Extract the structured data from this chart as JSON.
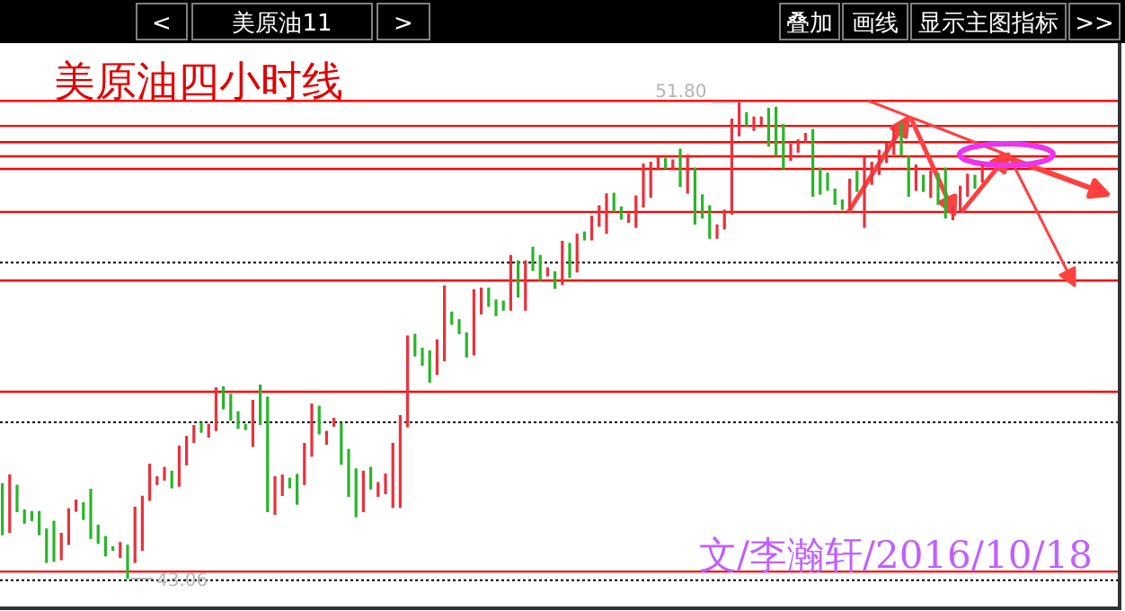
{
  "chart_data": {
    "type": "candlestick",
    "title": "美原油四小时线",
    "subtitle": "文/李瀚轩/2016/10/18",
    "annotations": [
      "<",
      "美原油11",
      ">",
      "叠加",
      "画线",
      "显示主图指标",
      ">>",
      {
        "text": "51.80",
        "y": 51.8
      },
      {
        "text": "43.06",
        "y": 43.06
      }
    ],
    "categories": [
      null,
      null,
      null,
      null,
      null,
      null,
      null,
      null,
      null,
      null,
      null,
      null,
      null,
      null,
      null,
      null,
      null,
      null,
      null,
      null,
      null,
      null,
      null,
      null,
      null,
      null,
      null,
      null,
      null,
      null,
      null,
      null,
      null,
      null,
      null,
      null,
      null,
      null,
      null,
      null,
      null,
      null,
      null,
      null,
      null,
      null,
      null,
      null,
      null,
      null,
      null,
      null,
      null,
      null,
      null,
      null,
      null,
      null,
      null,
      null,
      null,
      null,
      null,
      null,
      null,
      null,
      null,
      null,
      null,
      null,
      null,
      null,
      null,
      null,
      null,
      null,
      null,
      null,
      null,
      null,
      null,
      null,
      null,
      null,
      null,
      null,
      null,
      null,
      null,
      null,
      null,
      null,
      null,
      null,
      null,
      null,
      null,
      null,
      null,
      null,
      null,
      null,
      null,
      null,
      null,
      null,
      null,
      null,
      null,
      null,
      null,
      null,
      null,
      null,
      null,
      null,
      null,
      null,
      null,
      null,
      null,
      null,
      null,
      null,
      null,
      null,
      null,
      null,
      null,
      null,
      null,
      null,
      null,
      null
    ],
    "ohlc": [
      [
        44.81,
        44.81,
        43.86,
        43.86
      ],
      [
        43.9,
        44.97,
        43.9,
        44.97
      ],
      [
        44.78,
        44.78,
        44.28,
        44.28
      ],
      [
        44.33,
        44.33,
        44.07,
        44.07
      ],
      [
        44.3,
        44.3,
        44.12,
        44.12
      ],
      [
        44.3,
        44.3,
        43.86,
        43.86
      ],
      [
        43.98,
        43.98,
        43.35,
        43.35
      ],
      [
        44.12,
        44.12,
        43.37,
        43.37
      ],
      [
        43.4,
        43.9,
        43.4,
        43.9
      ],
      [
        43.68,
        44.35,
        43.68,
        44.35
      ],
      [
        44.29,
        44.51,
        44.29,
        44.51
      ],
      [
        44.46,
        44.46,
        44.14,
        44.14
      ],
      [
        44.71,
        44.71,
        43.79,
        43.79
      ],
      [
        44.05,
        44.05,
        43.7,
        43.7
      ],
      [
        43.84,
        43.84,
        43.47,
        43.47
      ],
      [
        43.65,
        43.65,
        43.57,
        43.57
      ],
      [
        43.44,
        43.73,
        43.44,
        43.73
      ],
      [
        43.68,
        43.68,
        43.06,
        43.06
      ],
      [
        43.35,
        44.38,
        43.35,
        44.38
      ],
      [
        43.57,
        44.58,
        43.57,
        44.58
      ],
      [
        44.49,
        45.17,
        44.49,
        45.17
      ],
      [
        44.78,
        44.94,
        44.78,
        44.94
      ],
      [
        44.86,
        45.11,
        44.86,
        45.11
      ],
      [
        45.04,
        45.04,
        44.72,
        44.72
      ],
      [
        44.75,
        45.5,
        44.75,
        45.5
      ],
      [
        45.14,
        45.68,
        45.14,
        45.68
      ],
      [
        45.55,
        45.88,
        45.55,
        45.88
      ],
      [
        45.93,
        45.93,
        45.74,
        45.74
      ],
      [
        45.65,
        45.9,
        45.65,
        45.9
      ],
      [
        45.77,
        46.57,
        45.77,
        46.57
      ],
      [
        46.59,
        46.59,
        46.17,
        46.17
      ],
      [
        46.45,
        46.45,
        45.96,
        45.96
      ],
      [
        46.13,
        46.13,
        45.81,
        45.81
      ],
      [
        45.9,
        45.9,
        45.79,
        45.79
      ],
      [
        45.48,
        46.34,
        45.48,
        46.34
      ],
      [
        46.62,
        46.62,
        45.88,
        45.88
      ],
      [
        46.4,
        46.4,
        44.28,
        44.28
      ],
      [
        44.23,
        44.94,
        44.23,
        44.94
      ],
      [
        44.58,
        44.97,
        44.58,
        44.97
      ],
      [
        44.91,
        44.91,
        44.72,
        44.72
      ],
      [
        44.98,
        44.98,
        44.42,
        44.42
      ],
      [
        44.78,
        45.55,
        44.78,
        45.55
      ],
      [
        45.3,
        46.27,
        45.3,
        46.27
      ],
      [
        46.23,
        46.23,
        45.71,
        45.71
      ],
      [
        45.52,
        45.77,
        45.52,
        45.77
      ],
      [
        45.85,
        46.01,
        45.85,
        46.01
      ],
      [
        45.92,
        45.92,
        45.15,
        45.15
      ],
      [
        45.44,
        45.44,
        44.56,
        44.56
      ],
      [
        45.08,
        45.08,
        44.19,
        44.19
      ],
      [
        44.28,
        45.04,
        44.28,
        45.04
      ],
      [
        45.11,
        45.11,
        44.7,
        44.7
      ],
      [
        44.56,
        44.83,
        44.56,
        44.83
      ],
      [
        44.61,
        44.99,
        44.61,
        44.99
      ],
      [
        44.36,
        45.55,
        44.36,
        45.55
      ],
      [
        44.36,
        46.06,
        44.36,
        46.06
      ],
      [
        45.84,
        47.52,
        45.84,
        47.52
      ],
      [
        47.55,
        47.55,
        47.14,
        47.14
      ],
      [
        47.3,
        47.3,
        46.97,
        46.97
      ],
      [
        47.25,
        47.25,
        46.66,
        46.66
      ],
      [
        46.8,
        47.45,
        46.8,
        47.45
      ],
      [
        47.05,
        48.44,
        47.05,
        48.44
      ],
      [
        47.96,
        47.96,
        47.72,
        47.72
      ],
      [
        47.82,
        47.82,
        47.55,
        47.55
      ],
      [
        47.58,
        47.58,
        47.12,
        47.12
      ],
      [
        47.16,
        48.37,
        47.16,
        48.37
      ],
      [
        47.91,
        48.4,
        47.91,
        48.4
      ],
      [
        48.4,
        48.4,
        48.05,
        48.05
      ],
      [
        48.18,
        48.18,
        47.88,
        47.88
      ],
      [
        48.16,
        48.16,
        47.98,
        47.98
      ],
      [
        47.98,
        49.0,
        47.98,
        49.0
      ],
      [
        48.9,
        48.9,
        48.22,
        48.22
      ],
      [
        47.98,
        48.9,
        47.98,
        48.9
      ],
      [
        49.15,
        49.15,
        48.71,
        48.71
      ],
      [
        49.0,
        49.0,
        48.53,
        48.53
      ],
      [
        48.61,
        48.77,
        48.61,
        48.77
      ],
      [
        48.7,
        48.7,
        48.38,
        48.38
      ],
      [
        48.45,
        49.26,
        48.45,
        49.26
      ],
      [
        49.22,
        49.22,
        48.58,
        48.58
      ],
      [
        48.68,
        49.39,
        48.68,
        49.39
      ],
      [
        49.43,
        49.43,
        49.27,
        49.27
      ],
      [
        49.27,
        49.72,
        49.27,
        49.72
      ],
      [
        49.52,
        49.91,
        49.52,
        49.91
      ],
      [
        49.39,
        50.13,
        49.39,
        50.13
      ],
      [
        50.14,
        50.14,
        49.79,
        49.79
      ],
      [
        49.89,
        49.89,
        49.65,
        49.65
      ],
      [
        49.59,
        49.76,
        49.59,
        49.76
      ],
      [
        49.5,
        50.09,
        49.5,
        50.09
      ],
      [
        49.87,
        50.68,
        49.87,
        50.68
      ],
      [
        50.05,
        50.71,
        50.05,
        50.71
      ],
      [
        50.58,
        50.81,
        50.58,
        50.81
      ],
      [
        50.78,
        50.78,
        50.58,
        50.58
      ],
      [
        50.56,
        50.75,
        50.56,
        50.75
      ],
      [
        50.95,
        50.95,
        50.25,
        50.25
      ],
      [
        50.13,
        50.84,
        50.13,
        50.84
      ],
      [
        50.6,
        50.6,
        49.56,
        49.56
      ],
      [
        50.11,
        50.11,
        49.67,
        49.67
      ],
      [
        49.91,
        49.91,
        49.3,
        49.3
      ],
      [
        49.3,
        49.56,
        49.3,
        49.56
      ],
      [
        49.47,
        49.83,
        49.47,
        49.83
      ],
      [
        49.74,
        51.5,
        49.74,
        51.5
      ],
      [
        51.18,
        51.8,
        51.18,
        51.8
      ],
      [
        51.62,
        51.62,
        51.37,
        51.37
      ],
      [
        51.28,
        51.54,
        51.28,
        51.54
      ],
      [
        51.39,
        51.54,
        51.39,
        51.54
      ],
      [
        51.7,
        51.7,
        50.99,
        50.99
      ],
      [
        51.72,
        51.72,
        50.82,
        50.82
      ],
      [
        51.4,
        51.4,
        50.58,
        50.58
      ],
      [
        50.73,
        51.04,
        50.73,
        51.04
      ],
      [
        50.88,
        51.12,
        50.88,
        51.12
      ],
      [
        51.06,
        51.24,
        51.06,
        51.24
      ],
      [
        51.31,
        51.31,
        50.07,
        50.07
      ],
      [
        50.6,
        50.6,
        50.11,
        50.11
      ],
      [
        50.51,
        50.51,
        50.18,
        50.18
      ],
      [
        50.22,
        50.22,
        49.92,
        49.92
      ],
      [
        50.02,
        50.02,
        49.83,
        49.83
      ],
      [
        49.83,
        50.4,
        49.83,
        50.4
      ],
      [
        50.55,
        50.55,
        50.16,
        50.16
      ],
      [
        49.5,
        50.79,
        49.5,
        50.79
      ],
      [
        50.29,
        50.71,
        50.29,
        50.71
      ],
      [
        50.47,
        50.93,
        50.47,
        50.93
      ],
      [
        50.69,
        51.06,
        50.69,
        51.06
      ],
      [
        50.84,
        51.37,
        50.84,
        51.37
      ],
      [
        51.43,
        51.43,
        50.82,
        50.82
      ],
      [
        50.82,
        50.82,
        50.07,
        50.07
      ],
      [
        50.18,
        50.66,
        50.18,
        50.66
      ],
      [
        50.47,
        50.47,
        50.16,
        50.16
      ],
      [
        50.05,
        50.55,
        50.05,
        50.55
      ],
      [
        50.51,
        50.51,
        49.92,
        49.92
      ],
      [
        50.6,
        50.6,
        49.67,
        49.67
      ],
      [
        49.64,
        49.89,
        49.64,
        49.89
      ],
      [
        49.81,
        50.27,
        49.81,
        50.27
      ],
      [
        50.07,
        50.49,
        50.07,
        50.49
      ],
      [
        50.47,
        50.47,
        50.22,
        50.22
      ],
      [
        50.33,
        50.66,
        50.33,
        50.66
      ]
    ],
    "ref_lines": [
      {
        "axis": "y",
        "value": 51.83,
        "color": "#ff0000"
      },
      {
        "axis": "y",
        "value": 51.37,
        "color": "#ff0000"
      },
      {
        "axis": "y",
        "value": 51.07,
        "color": "#ff0000"
      },
      {
        "axis": "y",
        "value": 50.81,
        "color": "#ff0000"
      },
      {
        "axis": "y",
        "value": 50.58,
        "color": "#ff0000"
      },
      {
        "axis": "y",
        "value": 49.79,
        "color": "#ff0000"
      },
      {
        "axis": "y",
        "value": 48.86,
        "color": "#000000",
        "line_style": "dotted"
      },
      {
        "axis": "y",
        "value": 48.53,
        "color": "#ff0000"
      },
      {
        "axis": "y",
        "value": 46.49,
        "color": "#ff0000"
      },
      {
        "axis": "y",
        "value": 45.93,
        "color": "#000000",
        "line_style": "dotted"
      },
      {
        "axis": "y",
        "value": 43.19,
        "color": "#ff0000"
      },
      {
        "axis": "y",
        "value": 43.03,
        "color": "#000000",
        "line_style": "dotted"
      }
    ]
  }
}
